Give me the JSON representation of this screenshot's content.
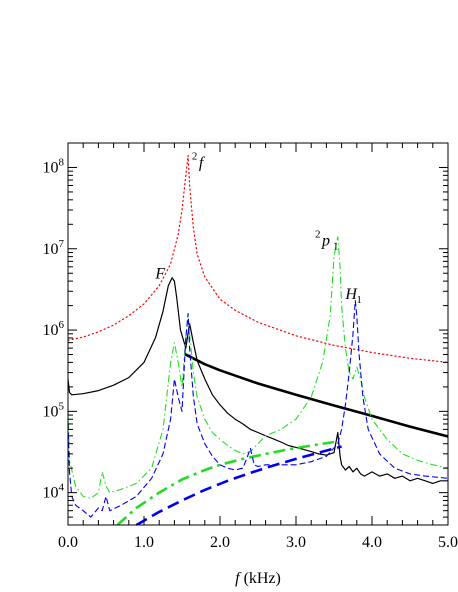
{
  "chart_data": {
    "type": "line",
    "title": "",
    "xlabel": {
      "italic": "f",
      "rest": " (kHz)"
    },
    "ylabel": "",
    "xlim": [
      0.0,
      5.0
    ],
    "ylim": [
      4000,
      200000000
    ],
    "yscale": "log",
    "x_ticks": [
      {
        "value": 0.0,
        "label": "0.0"
      },
      {
        "value": 1.0,
        "label": "1.0"
      },
      {
        "value": 2.0,
        "label": "2.0"
      },
      {
        "value": 3.0,
        "label": "3.0"
      },
      {
        "value": 4.0,
        "label": "4.0"
      },
      {
        "value": 5.0,
        "label": "5.0"
      }
    ],
    "y_ticks": [
      {
        "value": 10000,
        "base": "10",
        "exp": "4"
      },
      {
        "value": 100000,
        "base": "10",
        "exp": "5"
      },
      {
        "value": 1000000,
        "base": "10",
        "exp": "6"
      },
      {
        "value": 10000000,
        "base": "10",
        "exp": "7"
      },
      {
        "value": 100000000,
        "base": "10",
        "exp": "8"
      }
    ],
    "grid": false,
    "legend": "none",
    "series": [
      {
        "color": "#ff0000",
        "style": "dotted",
        "width": 1.2,
        "x": [
          0.0,
          0.2,
          0.4,
          0.6,
          0.8,
          1.0,
          1.2,
          1.35,
          1.45,
          1.5,
          1.55,
          1.58,
          1.6,
          1.65,
          1.7,
          1.8,
          2.0,
          2.2,
          2.5,
          3.0,
          3.5,
          4.0,
          4.5,
          5.0
        ],
        "y": [
          750000,
          820000,
          950000,
          1150000,
          1500000,
          2100000,
          3500000,
          6500000,
          15000000,
          30000000,
          80000000,
          140000000,
          60000000,
          18000000,
          8500000,
          4500000,
          2400000,
          1750000,
          1250000,
          850000,
          650000,
          530000,
          450000,
          400000
        ]
      },
      {
        "color": "#000000",
        "style": "solid",
        "width": 1.2,
        "x": [
          0.0,
          0.02,
          0.05,
          0.2,
          0.4,
          0.6,
          0.8,
          1.0,
          1.15,
          1.25,
          1.32,
          1.37,
          1.4,
          1.43,
          1.48,
          1.55,
          1.6,
          1.65,
          1.7,
          1.8,
          1.9,
          2.0,
          2.1,
          2.2,
          2.3,
          2.4,
          2.5,
          2.6,
          2.7,
          2.8,
          2.9,
          3.0,
          3.1,
          3.2,
          3.3,
          3.4,
          3.5,
          3.55,
          3.58,
          3.6,
          3.65,
          3.7,
          3.75,
          3.8,
          3.85,
          3.9,
          4.0,
          4.1,
          4.2,
          4.3,
          4.4,
          4.5,
          4.6,
          4.7,
          4.8,
          4.9,
          5.0
        ],
        "y": [
          250000,
          170000,
          160000,
          165000,
          180000,
          210000,
          260000,
          400000,
          800000,
          1700000,
          3500000,
          4400000,
          4000000,
          2500000,
          1000000,
          600000,
          1200000,
          700000,
          420000,
          250000,
          160000,
          120000,
          95000,
          80000,
          70000,
          60000,
          55000,
          50000,
          46000,
          42000,
          38000,
          36000,
          34000,
          32000,
          30000,
          29000,
          31000,
          55000,
          28000,
          22000,
          19000,
          21000,
          18000,
          20000,
          17000,
          16000,
          18000,
          16000,
          17000,
          15000,
          16000,
          14000,
          15000,
          14000,
          13000,
          14000,
          14000
        ]
      },
      {
        "color": "#000000",
        "style": "solid",
        "width": 2.6,
        "x": [
          1.53,
          1.8,
          2.0,
          2.5,
          3.0,
          3.5,
          4.0,
          4.5,
          5.0
        ],
        "y": [
          510000,
          380000,
          320000,
          220000,
          160000,
          118000,
          88000,
          65000,
          49000
        ]
      },
      {
        "color": "#22dd22",
        "style": "dashdot",
        "width": 1.1,
        "x": [
          0.0,
          0.02,
          0.1,
          0.2,
          0.3,
          0.4,
          0.45,
          0.5,
          0.55,
          0.7,
          0.9,
          1.1,
          1.25,
          1.35,
          1.4,
          1.45,
          1.5,
          1.55,
          1.58,
          1.6,
          1.65,
          1.7,
          1.8,
          1.9,
          2.0,
          2.1,
          2.2,
          2.3,
          2.4,
          2.5,
          2.6,
          2.8,
          3.0,
          3.2,
          3.35,
          3.45,
          3.5,
          3.55,
          3.58,
          3.6,
          3.65,
          3.7,
          3.75,
          3.8,
          3.85,
          3.9,
          4.0,
          4.2,
          4.4,
          4.6,
          4.8,
          5.0
        ],
        "y": [
          110000,
          25000,
          12000,
          9000,
          8500,
          10000,
          18000,
          12000,
          10000,
          11000,
          13000,
          20000,
          60000,
          400000,
          700000,
          400000,
          200000,
          800000,
          1500000,
          900000,
          300000,
          150000,
          80000,
          55000,
          45000,
          38000,
          33000,
          30000,
          32000,
          40000,
          50000,
          60000,
          80000,
          150000,
          400000,
          1500000,
          8000000,
          14000000,
          6000000,
          2000000,
          600000,
          300000,
          250000,
          350000,
          250000,
          150000,
          80000,
          45000,
          30000,
          25000,
          22000,
          20000
        ]
      },
      {
        "color": "#22dd22",
        "style": "dashdot",
        "width": 2.6,
        "x": [
          0.65,
          0.9,
          1.2,
          1.5,
          1.8,
          2.0,
          2.3,
          2.6,
          2.9,
          3.2,
          3.5
        ],
        "y": [
          4000,
          6500,
          10000,
          14500,
          19000,
          22000,
          26000,
          30000,
          34000,
          38000,
          42000
        ]
      },
      {
        "color": "#0000ee",
        "style": "dashed",
        "width": 1.1,
        "x": [
          0.0,
          0.02,
          0.05,
          0.1,
          0.2,
          0.3,
          0.4,
          0.45,
          0.5,
          0.55,
          0.7,
          0.9,
          1.1,
          1.25,
          1.35,
          1.4,
          1.45,
          1.5,
          1.55,
          1.58,
          1.6,
          1.65,
          1.7,
          1.8,
          1.9,
          2.0,
          2.1,
          2.2,
          2.3,
          2.35,
          2.4,
          2.45,
          2.5,
          2.6,
          2.8,
          3.0,
          3.2,
          3.4,
          3.55,
          3.6,
          3.65,
          3.7,
          3.75,
          3.78,
          3.8,
          3.83,
          3.88,
          3.95,
          4.1,
          4.3,
          4.5,
          4.7,
          5.0
        ],
        "y": [
          70000,
          18000,
          9000,
          7000,
          6000,
          5000,
          6500,
          6000,
          9000,
          6000,
          7000,
          9000,
          15000,
          30000,
          80000,
          250000,
          150000,
          100000,
          800000,
          1600000,
          600000,
          150000,
          70000,
          40000,
          28000,
          22000,
          20000,
          19000,
          20000,
          26000,
          35000,
          22000,
          21000,
          22000,
          22000,
          22000,
          24000,
          28000,
          40000,
          60000,
          120000,
          300000,
          900000,
          2300000,
          1500000,
          500000,
          150000,
          60000,
          30000,
          20000,
          17000,
          16000,
          15000
        ]
      },
      {
        "color": "#0000ee",
        "style": "dashed",
        "width": 2.6,
        "x": [
          0.9,
          1.2,
          1.5,
          1.8,
          2.1,
          2.4,
          2.7,
          3.0,
          3.3,
          3.6
        ],
        "y": [
          4000,
          5800,
          8000,
          10800,
          14000,
          17500,
          21500,
          26000,
          31000,
          37000
        ]
      }
    ],
    "annotations": [
      {
        "sup": "2",
        "main": "f",
        "sub": "",
        "x": 1.63,
        "y": 100000000
      },
      {
        "sup": "2",
        "main": "p",
        "sub": "1",
        "x": 3.25,
        "y": 11000000
      },
      {
        "sup": "",
        "main": "F",
        "sub": "",
        "x": 1.15,
        "y": 4300000
      },
      {
        "sup": "",
        "main": "H",
        "sub": "1",
        "x": 3.65,
        "y": 2400000
      }
    ]
  }
}
